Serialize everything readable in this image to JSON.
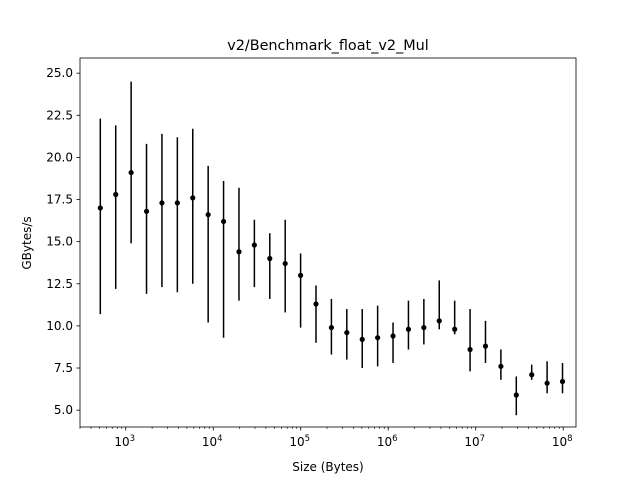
{
  "chart_data": {
    "type": "scatter",
    "title": "v2/Benchmark_float_v2_Mul",
    "xlabel": "Size (Bytes)",
    "ylabel": "GBytes/s",
    "xscale": "log",
    "xlim": [
      300,
      140000000
    ],
    "ylim": [
      4.0,
      25.9
    ],
    "grid": false,
    "legend": "none",
    "yticks": [
      {
        "value": 5.0,
        "label": "5.0"
      },
      {
        "value": 7.5,
        "label": "7.5"
      },
      {
        "value": 10.0,
        "label": "10.0"
      },
      {
        "value": 12.5,
        "label": "12.5"
      },
      {
        "value": 15.0,
        "label": "15.0"
      },
      {
        "value": 17.5,
        "label": "17.5"
      },
      {
        "value": 20.0,
        "label": "20.0"
      },
      {
        "value": 22.5,
        "label": "22.5"
      },
      {
        "value": 25.0,
        "label": "25.0"
      }
    ],
    "xticks": [
      {
        "value": 1000,
        "base": "10",
        "exp": "3"
      },
      {
        "value": 10000,
        "base": "10",
        "exp": "4"
      },
      {
        "value": 100000,
        "base": "10",
        "exp": "5"
      },
      {
        "value": 1000000,
        "base": "10",
        "exp": "6"
      },
      {
        "value": 10000000,
        "base": "10",
        "exp": "7"
      },
      {
        "value": 100000000,
        "base": "10",
        "exp": "8"
      }
    ],
    "points": [
      {
        "x": 512,
        "y": 17.0,
        "lo": 10.7,
        "hi": 22.3
      },
      {
        "x": 768,
        "y": 17.8,
        "lo": 12.2,
        "hi": 21.9
      },
      {
        "x": 1152,
        "y": 19.1,
        "lo": 14.9,
        "hi": 24.5
      },
      {
        "x": 1728,
        "y": 16.8,
        "lo": 11.9,
        "hi": 20.8
      },
      {
        "x": 2592,
        "y": 17.3,
        "lo": 12.3,
        "hi": 21.4
      },
      {
        "x": 3888,
        "y": 17.3,
        "lo": 12.0,
        "hi": 21.2
      },
      {
        "x": 5832,
        "y": 17.6,
        "lo": 12.5,
        "hi": 21.7
      },
      {
        "x": 8748,
        "y": 16.6,
        "lo": 10.2,
        "hi": 19.5
      },
      {
        "x": 13122,
        "y": 16.2,
        "lo": 9.3,
        "hi": 18.6
      },
      {
        "x": 19683,
        "y": 14.4,
        "lo": 11.5,
        "hi": 18.2
      },
      {
        "x": 29525,
        "y": 14.8,
        "lo": 12.3,
        "hi": 16.3
      },
      {
        "x": 44287,
        "y": 14.0,
        "lo": 11.6,
        "hi": 15.5
      },
      {
        "x": 66430,
        "y": 13.7,
        "lo": 10.8,
        "hi": 16.3
      },
      {
        "x": 99645,
        "y": 13.0,
        "lo": 9.9,
        "hi": 14.3
      },
      {
        "x": 149468,
        "y": 11.3,
        "lo": 9.0,
        "hi": 12.4
      },
      {
        "x": 224202,
        "y": 9.9,
        "lo": 8.3,
        "hi": 11.6
      },
      {
        "x": 336303,
        "y": 9.6,
        "lo": 8.0,
        "hi": 11.0
      },
      {
        "x": 504455,
        "y": 9.2,
        "lo": 7.5,
        "hi": 11.0
      },
      {
        "x": 756682,
        "y": 9.3,
        "lo": 7.6,
        "hi": 11.2
      },
      {
        "x": 1135023,
        "y": 9.4,
        "lo": 7.8,
        "hi": 10.2
      },
      {
        "x": 1702534,
        "y": 9.8,
        "lo": 8.6,
        "hi": 11.5
      },
      {
        "x": 2553801,
        "y": 9.9,
        "lo": 8.9,
        "hi": 11.6
      },
      {
        "x": 3830702,
        "y": 10.3,
        "lo": 9.8,
        "hi": 12.7
      },
      {
        "x": 5746053,
        "y": 9.8,
        "lo": 9.5,
        "hi": 11.5
      },
      {
        "x": 8619079,
        "y": 8.6,
        "lo": 7.3,
        "hi": 11.0
      },
      {
        "x": 12928618,
        "y": 8.8,
        "lo": 7.8,
        "hi": 10.3
      },
      {
        "x": 19392927,
        "y": 7.6,
        "lo": 6.8,
        "hi": 8.6
      },
      {
        "x": 29089390,
        "y": 5.9,
        "lo": 4.7,
        "hi": 7.0
      },
      {
        "x": 43634085,
        "y": 7.1,
        "lo": 6.8,
        "hi": 7.7
      },
      {
        "x": 65451128,
        "y": 6.6,
        "lo": 6.0,
        "hi": 7.9
      },
      {
        "x": 98176692,
        "y": 6.7,
        "lo": 6.0,
        "hi": 7.8
      }
    ]
  }
}
